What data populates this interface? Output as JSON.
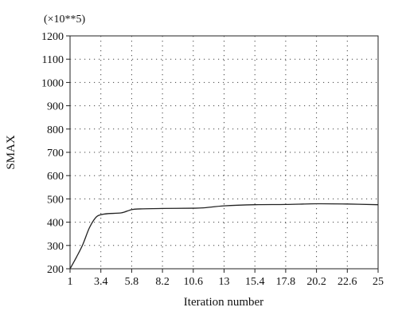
{
  "chart_data": {
    "type": "line",
    "multiplier": "(×10**5)",
    "xlabel": "Iteration number",
    "ylabel": "SMAX",
    "xlim": [
      1,
      25
    ],
    "ylim": [
      200,
      1200
    ],
    "x_ticks": [
      "1",
      "3.4",
      "5.8",
      "8.2",
      "10.6",
      "13",
      "15.4",
      "17.8",
      "20.2",
      "22.6",
      "25"
    ],
    "y_ticks": [
      "200",
      "300",
      "400",
      "500",
      "600",
      "700",
      "800",
      "900",
      "1000",
      "1100",
      "1200"
    ],
    "grid": true,
    "series": [
      {
        "x": [
          1,
          1.5,
          2,
          2.5,
          3,
          3.4,
          4,
          5,
          5.8,
          6.5,
          8.2,
          10.6,
          11.5,
          13,
          15.4,
          17.8,
          20.2,
          22.6,
          25
        ],
        "y": [
          200,
          250,
          305,
          375,
          420,
          432,
          437,
          440,
          454,
          457,
          459,
          460,
          462,
          470,
          475,
          476,
          479,
          478,
          475
        ]
      }
    ]
  }
}
